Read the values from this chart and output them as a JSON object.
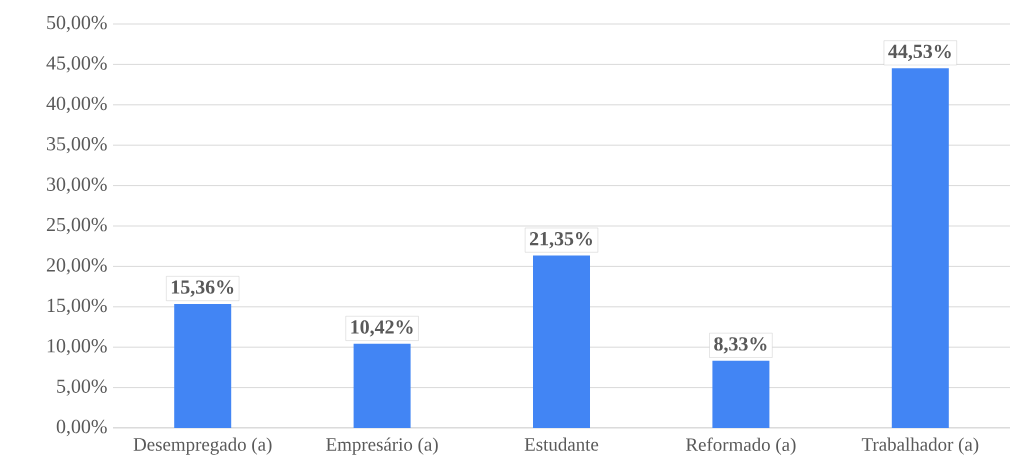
{
  "chart_data": {
    "type": "bar",
    "categories": [
      "Desempregado (a)",
      "Empresário (a)",
      "Estudante",
      "Reformado (a)",
      "Trabalhador (a)"
    ],
    "values": [
      15.36,
      10.42,
      21.35,
      8.33,
      44.53
    ],
    "value_labels": [
      "15,36%",
      "10,42%",
      "21,35%",
      "8,33%",
      "44,53%"
    ],
    "color": "#4285f4",
    "ylim": [
      0,
      50
    ],
    "yticks": [
      {
        "value": 0,
        "label": "0,00%"
      },
      {
        "value": 5,
        "label": "5,00%"
      },
      {
        "value": 10,
        "label": "10,00%"
      },
      {
        "value": 15,
        "label": "15,00%"
      },
      {
        "value": 20,
        "label": "20,00%"
      },
      {
        "value": 25,
        "label": "25,00%"
      },
      {
        "value": 30,
        "label": "30,00%"
      },
      {
        "value": 35,
        "label": "35,00%"
      },
      {
        "value": 40,
        "label": "40,00%"
      },
      {
        "value": 45,
        "label": "45,00%"
      },
      {
        "value": 50,
        "label": "50,00%"
      }
    ],
    "grid": "y"
  }
}
